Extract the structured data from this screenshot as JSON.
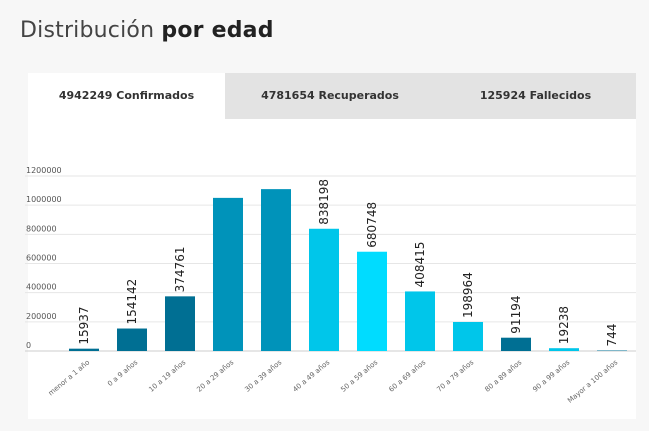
{
  "heading": {
    "light": "Distribución",
    "bold": "por edad"
  },
  "tabs": [
    {
      "label": "4942249 Confirmados",
      "active": true
    },
    {
      "label": "4781654 Recuperados",
      "active": false
    },
    {
      "label": "125924 Fallecidos",
      "active": false
    }
  ],
  "colors": {
    "dark": "#006f93",
    "mid": "#0093ba",
    "light": "#00c6ea",
    "bright": "#00dcff"
  },
  "chart_data": {
    "type": "bar",
    "categories": [
      "menor a 1 año",
      "0 a 9 años",
      "10 a 19 años",
      "20 a 29 años",
      "30 a 39 años",
      "40 a 49 años",
      "50 a 59 años",
      "60 a 69 años",
      "70 a 79 años",
      "80 a 89 años",
      "90 a 99 años",
      "Mayor a 100 años"
    ],
    "values": [
      15937,
      154142,
      374761,
      1050000,
      1110000,
      838198,
      680748,
      408415,
      198964,
      91194,
      19238,
      744
    ],
    "data_labels": [
      "15937",
      "154142",
      "374761",
      "",
      "",
      "838198",
      "680748",
      "408415",
      "198964",
      "91194",
      "19238",
      "744"
    ],
    "bar_colors": [
      "#006f93",
      "#006f93",
      "#006f93",
      "#0093ba",
      "#0093ba",
      "#00c6ea",
      "#00dcff",
      "#00c6ea",
      "#00c6ea",
      "#006f93",
      "#00c6ea",
      "#006f93"
    ],
    "yticks": [
      "0",
      "200000",
      "400000",
      "600000",
      "800000",
      "1000000",
      "1200000"
    ],
    "ylim": [
      0,
      1200000
    ],
    "grid": true
  }
}
